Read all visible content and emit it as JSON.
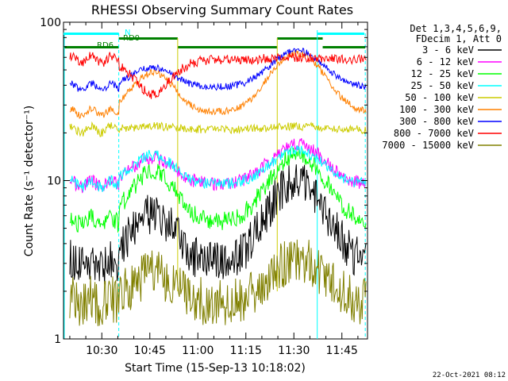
{
  "chart_data": {
    "type": "line",
    "title": "RHESSI Observing Summary Count Rates",
    "xlabel": "Start Time (15-Sep-13 10:18:02)",
    "ylabel": "Count Rate (s⁻¹ detector⁻¹)",
    "y_scale": "log",
    "ylim": [
      1,
      100
    ],
    "xlim": [
      "10:18:02",
      "11:53:00"
    ],
    "x_ticks": [
      "10:30",
      "10:45",
      "11:00",
      "11:15",
      "11:30",
      "11:45"
    ],
    "x_tick_minutes": [
      30,
      45,
      60,
      75,
      90,
      105
    ],
    "x_start_minutes": 18.03,
    "x_end_minutes": 113.0,
    "y_ticks": [
      "1",
      "10",
      "100"
    ],
    "y_tick_values": [
      1,
      10,
      100
    ],
    "legend_header": [
      "Det 1,3,4,5,6,9,",
      "FDecim 1, Att 0"
    ],
    "annotations": {
      "night": "N",
      "rd6": "RD6",
      "rd0": "RD0"
    },
    "footer_date": "22-Oct-2021 08:12",
    "night_intervals": [
      [
        18.0,
        35.3
      ],
      [
        97.3,
        112.0
      ]
    ],
    "rd6_intervals": [
      [
        18.0,
        35.3
      ],
      [
        53.7,
        84.8
      ],
      [
        99.0,
        112.3
      ]
    ],
    "rd0_intervals": [
      [
        35.3,
        53.7
      ],
      [
        84.8,
        99.0
      ]
    ],
    "series": [
      {
        "name": "3 - 6 keV",
        "color": "#000000",
        "base": 3.0,
        "peak1": 6.2,
        "peak2": 10.0,
        "noise": 0.3
      },
      {
        "name": "6 - 12 keV",
        "color": "#ff00ff",
        "base": 9.5,
        "peak1": 14.0,
        "peak2": 17.0,
        "noise": 0.1
      },
      {
        "name": "12 - 25 keV",
        "color": "#00ff00",
        "base": 5.5,
        "peak1": 11.5,
        "peak2": 14.5,
        "noise": 0.14
      },
      {
        "name": "25 - 50 keV",
        "color": "#00ffff",
        "base": 9.5,
        "peak1": 14.5,
        "peak2": 15.5,
        "noise": 0.08
      },
      {
        "name": "50 - 100 keV",
        "color": "#cccc00",
        "base": 21.0,
        "peak1": 22.0,
        "peak2": 22.0,
        "noise": 0.06
      },
      {
        "name": "100 - 300 keV",
        "color": "#ff8000",
        "base": 27.0,
        "peak1": 48.0,
        "peak2": 64.0,
        "noise": 0.05
      },
      {
        "name": "300 - 800 keV",
        "color": "#0000ff",
        "base": 39.0,
        "peak1": 52.0,
        "peak2": 66.0,
        "noise": 0.05
      },
      {
        "name": "800 - 7000 keV",
        "color": "#ff0000",
        "base": 58.0,
        "peak1": 35.0,
        "peak2": 60.0,
        "noise": 0.07
      },
      {
        "name": "7000 - 15000 keV",
        "color": "#808000",
        "base": 1.7,
        "peak1": 2.6,
        "peak2": 3.2,
        "noise": 0.35
      }
    ]
  }
}
